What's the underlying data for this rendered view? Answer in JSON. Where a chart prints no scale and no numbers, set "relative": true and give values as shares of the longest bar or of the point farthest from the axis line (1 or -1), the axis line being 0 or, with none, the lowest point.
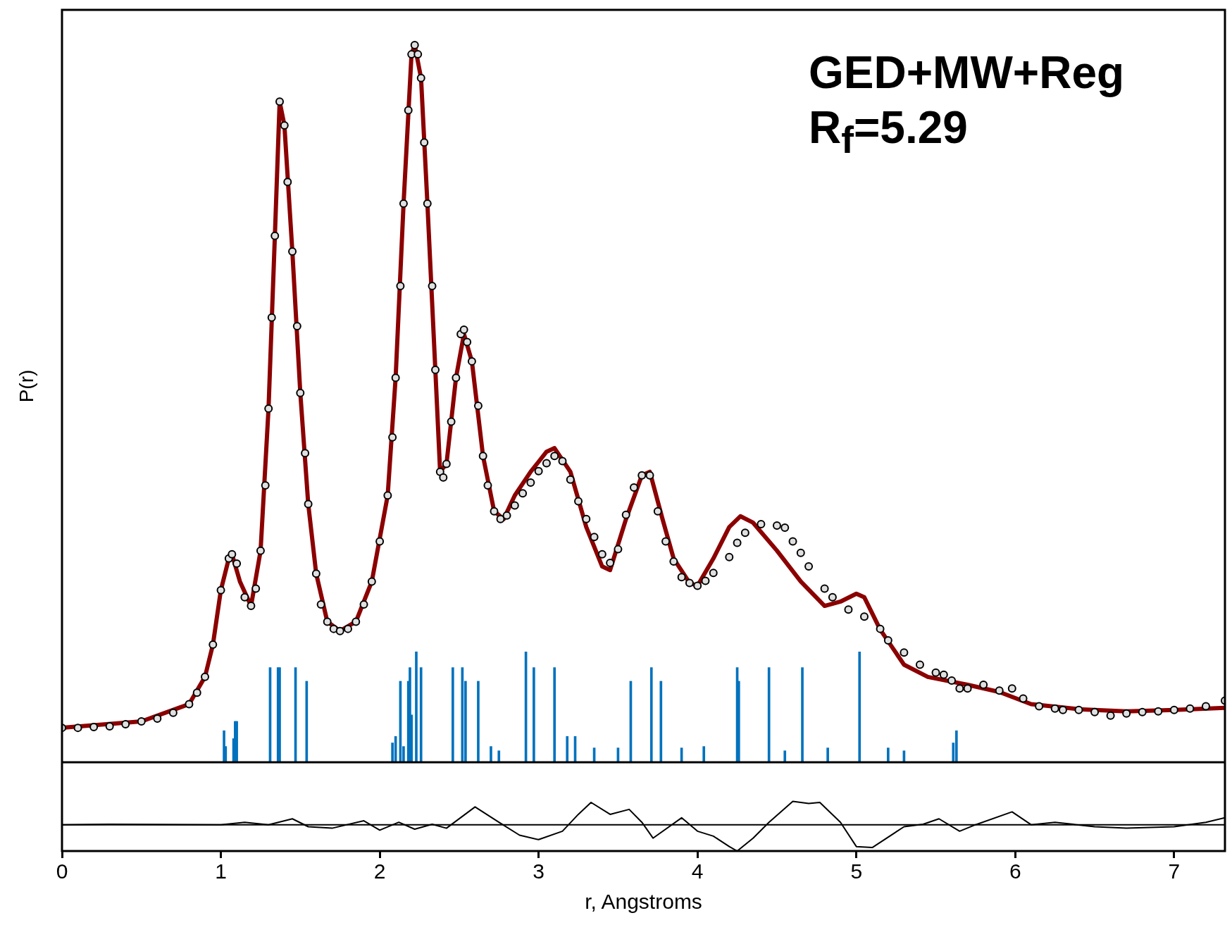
{
  "chart_data": [
    {
      "type": "line",
      "ylabel": "P(r)",
      "relative": true,
      "xlim": [
        0,
        7.32
      ],
      "tick_labels": false,
      "grid": false,
      "legend": false,
      "annotations": [
        "GED+MW+Reg",
        "R$_{f}$=5.29"
      ],
      "series": [
        {
          "color": "#8b0000",
          "x": [
            0,
            0.5,
            0.8,
            0.9,
            0.95,
            1.0,
            1.05,
            1.07,
            1.12,
            1.19,
            1.25,
            1.3,
            1.34,
            1.37,
            1.4,
            1.45,
            1.5,
            1.55,
            1.6,
            1.67,
            1.75,
            1.85,
            1.95,
            2.05,
            2.1,
            2.15,
            2.2,
            2.22,
            2.26,
            2.3,
            2.35,
            2.38,
            2.42,
            2.48,
            2.53,
            2.58,
            2.65,
            2.72,
            2.78,
            2.85,
            2.95,
            3.05,
            3.1,
            3.2,
            3.3,
            3.4,
            3.45,
            3.55,
            3.65,
            3.7,
            3.78,
            3.85,
            3.95,
            4.0,
            4.1,
            4.2,
            4.27,
            4.35,
            4.5,
            4.65,
            4.8,
            4.9,
            5.0,
            5.05,
            5.15,
            5.3,
            5.45,
            5.7,
            5.9,
            6.1,
            6.4,
            6.7,
            7.0,
            7.32
          ],
          "values": [
            0.048,
            0.057,
            0.081,
            0.119,
            0.164,
            0.24,
            0.284,
            0.29,
            0.252,
            0.218,
            0.295,
            0.493,
            0.734,
            0.921,
            0.888,
            0.712,
            0.515,
            0.36,
            0.263,
            0.196,
            0.183,
            0.196,
            0.252,
            0.372,
            0.536,
            0.779,
            0.987,
            1.0,
            0.954,
            0.779,
            0.547,
            0.405,
            0.416,
            0.536,
            0.597,
            0.559,
            0.427,
            0.35,
            0.339,
            0.372,
            0.405,
            0.433,
            0.438,
            0.405,
            0.328,
            0.273,
            0.268,
            0.339,
            0.4,
            0.405,
            0.339,
            0.284,
            0.25,
            0.246,
            0.284,
            0.328,
            0.343,
            0.334,
            0.295,
            0.252,
            0.218,
            0.224,
            0.235,
            0.23,
            0.185,
            0.136,
            0.119,
            0.108,
            0.098,
            0.081,
            0.074,
            0.071,
            0.073,
            0.076
          ]
        },
        {
          "type": "scatter",
          "marker": "circle",
          "color": "#e0e0e0",
          "x": [
            0,
            0.1,
            0.2,
            0.3,
            0.4,
            0.5,
            0.6,
            0.7,
            0.8,
            0.85,
            0.9,
            0.95,
            1.0,
            1.05,
            1.07,
            1.1,
            1.15,
            1.19,
            1.22,
            1.25,
            1.28,
            1.3,
            1.32,
            1.34,
            1.37,
            1.4,
            1.42,
            1.45,
            1.48,
            1.5,
            1.53,
            1.55,
            1.6,
            1.63,
            1.67,
            1.71,
            1.75,
            1.8,
            1.85,
            1.9,
            1.95,
            2.0,
            2.05,
            2.08,
            2.1,
            2.13,
            2.15,
            2.18,
            2.2,
            2.22,
            2.24,
            2.26,
            2.28,
            2.3,
            2.33,
            2.35,
            2.38,
            2.4,
            2.42,
            2.45,
            2.48,
            2.51,
            2.53,
            2.55,
            2.58,
            2.62,
            2.65,
            2.68,
            2.72,
            2.76,
            2.8,
            2.85,
            2.9,
            2.95,
            3.0,
            3.05,
            3.1,
            3.15,
            3.2,
            3.25,
            3.3,
            3.35,
            3.4,
            3.45,
            3.5,
            3.55,
            3.6,
            3.65,
            3.7,
            3.75,
            3.8,
            3.85,
            3.9,
            3.95,
            4.0,
            4.05,
            4.1,
            4.2,
            4.25,
            4.3,
            4.4,
            4.5,
            4.55,
            4.6,
            4.65,
            4.7,
            4.8,
            4.85,
            4.95,
            5.05,
            5.15,
            5.2,
            5.3,
            5.4,
            5.5,
            5.55,
            5.6,
            5.65,
            5.7,
            5.8,
            5.9,
            5.98,
            6.05,
            6.15,
            6.25,
            6.3,
            6.4,
            6.5,
            6.6,
            6.7,
            6.8,
            6.9,
            7.0,
            7.1,
            7.2,
            7.32
          ],
          "values": [
            0.048,
            0.048,
            0.049,
            0.05,
            0.053,
            0.057,
            0.061,
            0.069,
            0.081,
            0.097,
            0.119,
            0.164,
            0.24,
            0.284,
            0.29,
            0.277,
            0.23,
            0.218,
            0.242,
            0.295,
            0.386,
            0.493,
            0.62,
            0.734,
            0.921,
            0.888,
            0.809,
            0.712,
            0.608,
            0.515,
            0.431,
            0.36,
            0.263,
            0.22,
            0.196,
            0.186,
            0.183,
            0.186,
            0.196,
            0.22,
            0.252,
            0.308,
            0.372,
            0.453,
            0.536,
            0.664,
            0.779,
            0.909,
            0.987,
            1.0,
            0.987,
            0.954,
            0.864,
            0.779,
            0.664,
            0.547,
            0.405,
            0.397,
            0.416,
            0.475,
            0.536,
            0.597,
            0.603,
            0.586,
            0.559,
            0.497,
            0.427,
            0.386,
            0.35,
            0.339,
            0.344,
            0.358,
            0.375,
            0.39,
            0.406,
            0.417,
            0.427,
            0.42,
            0.394,
            0.364,
            0.339,
            0.314,
            0.29,
            0.278,
            0.297,
            0.345,
            0.383,
            0.4,
            0.4,
            0.35,
            0.308,
            0.28,
            0.258,
            0.25,
            0.246,
            0.253,
            0.264,
            0.286,
            0.306,
            0.32,
            0.332,
            0.33,
            0.327,
            0.308,
            0.292,
            0.273,
            0.242,
            0.23,
            0.213,
            0.203,
            0.186,
            0.17,
            0.153,
            0.136,
            0.125,
            0.122,
            0.114,
            0.103,
            0.103,
            0.108,
            0.1,
            0.103,
            0.089,
            0.078,
            0.075,
            0.073,
            0.073,
            0.07,
            0.065,
            0.068,
            0.07,
            0.071,
            0.073,
            0.075,
            0.078,
            0.086
          ]
        },
        {
          "type": "bar",
          "color": "#0072bd",
          "x": [
            1.02,
            1.03,
            1.08,
            1.09,
            1.1,
            1.31,
            1.36,
            1.37,
            1.47,
            1.54,
            2.08,
            2.1,
            2.13,
            2.15,
            2.18,
            2.19,
            2.2,
            2.23,
            2.26,
            2.46,
            2.52,
            2.54,
            2.62,
            2.7,
            2.75,
            2.92,
            2.97,
            3.1,
            3.18,
            3.23,
            3.35,
            3.5,
            3.58,
            3.71,
            3.77,
            3.9,
            4.04,
            4.25,
            4.26,
            4.45,
            4.55,
            4.66,
            4.82,
            5.02,
            5.2,
            5.3,
            5.61,
            5.63
          ],
          "values": [
            0.044,
            0.022,
            0.033,
            0.057,
            0.057,
            0.132,
            0.132,
            0.132,
            0.132,
            0.113,
            0.027,
            0.036,
            0.113,
            0.022,
            0.113,
            0.132,
            0.066,
            0.154,
            0.132,
            0.132,
            0.132,
            0.113,
            0.113,
            0.022,
            0.016,
            0.154,
            0.132,
            0.132,
            0.036,
            0.036,
            0.02,
            0.02,
            0.113,
            0.132,
            0.113,
            0.02,
            0.022,
            0.132,
            0.113,
            0.132,
            0.016,
            0.132,
            0.02,
            0.154,
            0.02,
            0.016,
            0.027,
            0.044
          ]
        }
      ]
    },
    {
      "type": "line",
      "xlabel": "r, Angstroms",
      "relative": true,
      "xlim": [
        0,
        7.32
      ],
      "xticks": [
        0,
        1,
        2,
        3,
        4,
        5,
        6,
        7
      ],
      "tick_labels": "x",
      "grid": false,
      "legend": false,
      "ref_lines": [
        {
          "axis": "y",
          "value": 0.53,
          "color": "#000000"
        }
      ],
      "series": [
        {
          "color": "#000000",
          "x": [
            0,
            0.3,
            1.0,
            1.15,
            1.3,
            1.45,
            1.55,
            1.7,
            1.9,
            2.0,
            2.12,
            2.22,
            2.33,
            2.42,
            2.6,
            2.75,
            2.88,
            3.0,
            3.15,
            3.25,
            3.33,
            3.45,
            3.57,
            3.65,
            3.72,
            3.9,
            4.0,
            4.1,
            4.2,
            4.25,
            4.35,
            4.45,
            4.6,
            4.7,
            4.77,
            4.9,
            5.0,
            5.1,
            5.3,
            5.42,
            5.52,
            5.65,
            5.75,
            5.98,
            6.1,
            6.25,
            6.5,
            6.7,
            7.0,
            7.2,
            7.32
          ],
          "values": [
            0.53,
            0.54,
            0.53,
            0.58,
            0.53,
            0.65,
            0.49,
            0.46,
            0.61,
            0.42,
            0.58,
            0.44,
            0.54,
            0.46,
            0.89,
            0.58,
            0.32,
            0.23,
            0.4,
            0.74,
            0.98,
            0.74,
            0.84,
            0.58,
            0.26,
            0.67,
            0.4,
            0.3,
            0.09,
            0,
            0.26,
            0.58,
            1,
            0.96,
            0.98,
            0.58,
            0.09,
            0.07,
            0.49,
            0.54,
            0.65,
            0.4,
            0.53,
            0.79,
            0.53,
            0.58,
            0.49,
            0.46,
            0.49,
            0.58,
            0.67
          ]
        }
      ]
    }
  ]
}
